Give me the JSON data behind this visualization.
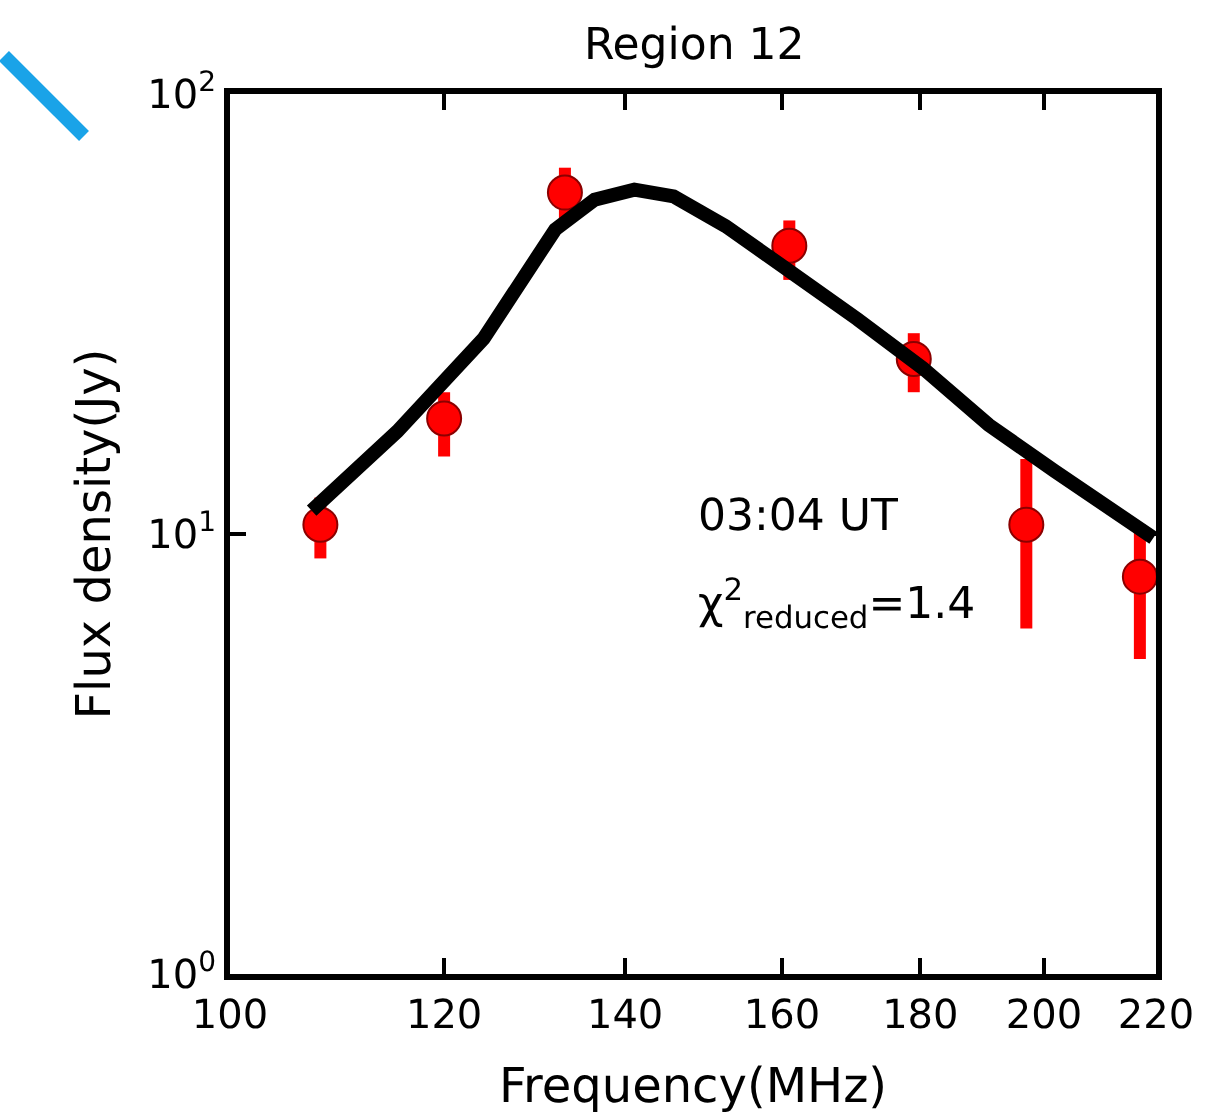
{
  "chart_data": {
    "type": "scatter",
    "title": "Region 12",
    "xlabel": "Frequency(MHz)",
    "ylabel": "Flux density(Jy)",
    "log": "xy",
    "grid": false,
    "xlim": [
      100,
      220
    ],
    "xticks": [
      100,
      120,
      140,
      160,
      180,
      200,
      220
    ],
    "ylim": [
      1,
      100
    ],
    "yticks": [
      {
        "value": 1,
        "label": "10$^{0}$"
      },
      {
        "value": 10,
        "label": "10$^{1}$"
      },
      {
        "value": 100,
        "label": "10$^{2}$"
      }
    ],
    "annotations": [
      "03:04 UT",
      "χ$^{2}$$_{reduced}$=1.4"
    ],
    "series": [
      {
        "type": "scatter",
        "marker": "circle",
        "color": "#ff0000",
        "x": [
          108,
          120,
          133,
          161,
          179,
          197,
          217
        ],
        "values": [
          10.5,
          18.3,
          59.7,
          45.2,
          25,
          10.5,
          8.0
        ],
        "errors": [
          [
            8.8,
            12.1
          ],
          [
            15,
            21
          ],
          [
            51.6,
            68
          ],
          [
            37.8,
            51.6
          ],
          [
            21,
            28.6
          ],
          [
            6.1,
            14.8
          ],
          [
            5.2,
            10.5
          ]
        ]
      },
      {
        "type": "line",
        "marker": "none",
        "color": "#000000",
        "line_style": "solid",
        "x": [
          107.2,
          115.3,
          124.1,
          131.9,
          136.4,
          141.1,
          145.9,
          152.5,
          161.3,
          170.6,
          180.4,
          190.8,
          201.8,
          219.5
        ],
        "values": [
          11.3,
          17.1,
          27.8,
          49.2,
          57.5,
          60.6,
          58.5,
          50.1,
          39.3,
          30.8,
          23.8,
          17.7,
          13.9,
          9.8
        ]
      }
    ]
  }
}
